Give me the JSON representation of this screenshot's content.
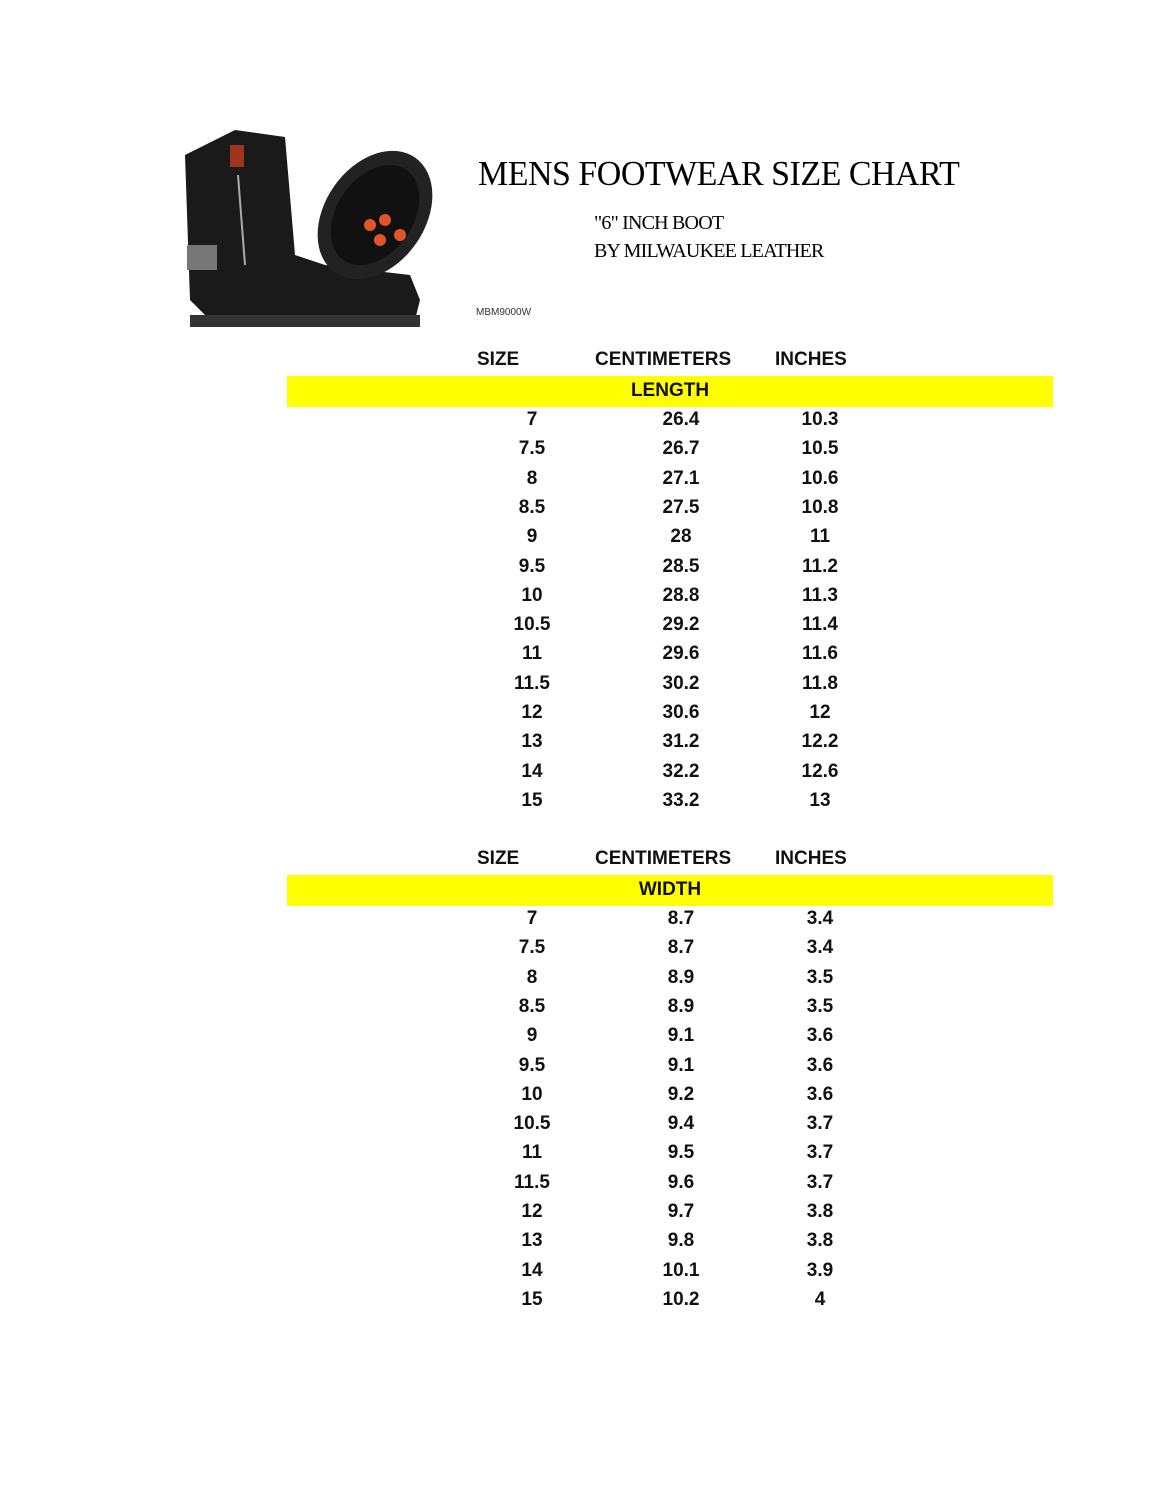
{
  "document": {
    "title": "MENS FOOTWEAR SIZE CHART",
    "subtitle_line1": "\"6\" INCH BOOT",
    "subtitle_line2": "BY MILWAUKEE LEATHER",
    "product_code": "MBM9000W",
    "image": "black-leather-boots-photo"
  },
  "columns": {
    "size": "SIZE",
    "centimeters": "CENTIMETERS",
    "inches": "INCHES"
  },
  "colors": {
    "section_bar": "#ffff00"
  },
  "sections": [
    {
      "label": "LENGTH",
      "rows": [
        [
          "7",
          "26.4",
          "10.3"
        ],
        [
          "7.5",
          "26.7",
          "10.5"
        ],
        [
          "8",
          "27.1",
          "10.6"
        ],
        [
          "8.5",
          "27.5",
          "10.8"
        ],
        [
          "9",
          "28",
          "11"
        ],
        [
          "9.5",
          "28.5",
          "11.2"
        ],
        [
          "10",
          "28.8",
          "11.3"
        ],
        [
          "10.5",
          "29.2",
          "11.4"
        ],
        [
          "11",
          "29.6",
          "11.6"
        ],
        [
          "11.5",
          "30.2",
          "11.8"
        ],
        [
          "12",
          "30.6",
          "12"
        ],
        [
          "13",
          "31.2",
          "12.2"
        ],
        [
          "14",
          "32.2",
          "12.6"
        ],
        [
          "15",
          "33.2",
          "13"
        ]
      ]
    },
    {
      "label": "WIDTH",
      "rows": [
        [
          "7",
          "8.7",
          "3.4"
        ],
        [
          "7.5",
          "8.7",
          "3.4"
        ],
        [
          "8",
          "8.9",
          "3.5"
        ],
        [
          "8.5",
          "8.9",
          "3.5"
        ],
        [
          "9",
          "9.1",
          "3.6"
        ],
        [
          "9.5",
          "9.1",
          "3.6"
        ],
        [
          "10",
          "9.2",
          "3.6"
        ],
        [
          "10.5",
          "9.4",
          "3.7"
        ],
        [
          "11",
          "9.5",
          "3.7"
        ],
        [
          "11.5",
          "9.6",
          "3.7"
        ],
        [
          "12",
          "9.7",
          "3.8"
        ],
        [
          "13",
          "9.8",
          "3.8"
        ],
        [
          "14",
          "10.1",
          "3.9"
        ],
        [
          "15",
          "10.2",
          "4"
        ]
      ]
    }
  ]
}
